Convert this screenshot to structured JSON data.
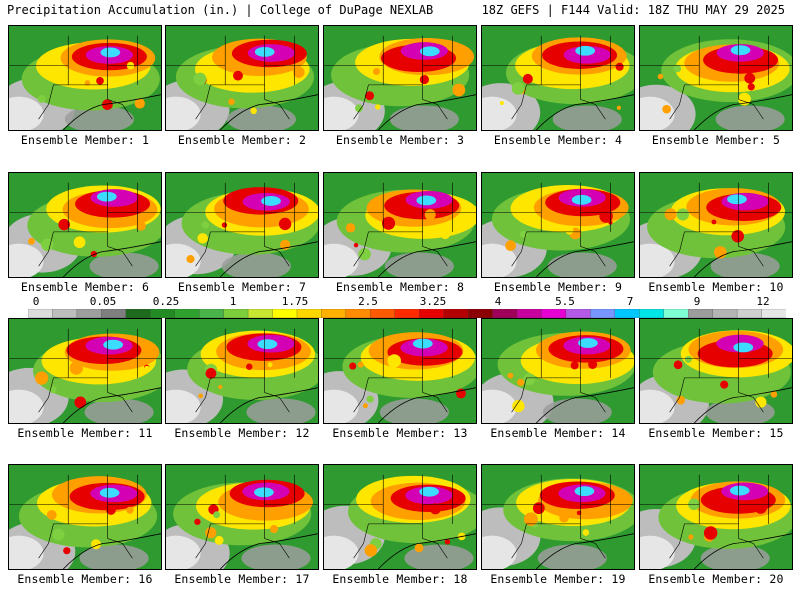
{
  "header": {
    "title_left": "Precipitation Accumulation (in.) | College of DuPage NEXLAB",
    "title_right": "18Z GEFS | F144 Valid: 18Z THU MAY 29 2025"
  },
  "colorbar": {
    "labels": [
      "0",
      "0.05",
      "0.25",
      "1",
      "1.75",
      "2.5",
      "3.25",
      "4",
      "5.5",
      "7",
      "9",
      "12"
    ],
    "colors": [
      "#dcdcdc",
      "#bdbdbd",
      "#9e9e9e",
      "#7f7f7f",
      "#1e6b1e",
      "#238b23",
      "#2fa12f",
      "#49b449",
      "#7ccf3a",
      "#c8e632",
      "#ffff00",
      "#ffd700",
      "#ffb000",
      "#ff8c00",
      "#ff5a00",
      "#ff2a00",
      "#e60000",
      "#b40000",
      "#8b0000",
      "#a0005a",
      "#c800a0",
      "#e600d2",
      "#b45ae6",
      "#7896ff",
      "#00c8ff",
      "#00e6e6",
      "#7fffd4",
      "#9c9c9c",
      "#b4b4b4",
      "#cfcfcf",
      "#e6e6e6"
    ]
  },
  "members": [
    {
      "label": "Ensemble Member: 1"
    },
    {
      "label": "Ensemble Member: 2"
    },
    {
      "label": "Ensemble Member: 3"
    },
    {
      "label": "Ensemble Member: 4"
    },
    {
      "label": "Ensemble Member: 5"
    },
    {
      "label": "Ensemble Member: 6"
    },
    {
      "label": "Ensemble Member: 7"
    },
    {
      "label": "Ensemble Member: 8"
    },
    {
      "label": "Ensemble Member: 9"
    },
    {
      "label": "Ensemble Member: 10"
    },
    {
      "label": "Ensemble Member: 11"
    },
    {
      "label": "Ensemble Member: 12"
    },
    {
      "label": "Ensemble Member: 13"
    },
    {
      "label": "Ensemble Member: 14"
    },
    {
      "label": "Ensemble Member: 15"
    },
    {
      "label": "Ensemble Member: 16"
    },
    {
      "label": "Ensemble Member: 17"
    },
    {
      "label": "Ensemble Member: 18"
    },
    {
      "label": "Ensemble Member: 19"
    },
    {
      "label": "Ensemble Member: 20"
    }
  ]
}
